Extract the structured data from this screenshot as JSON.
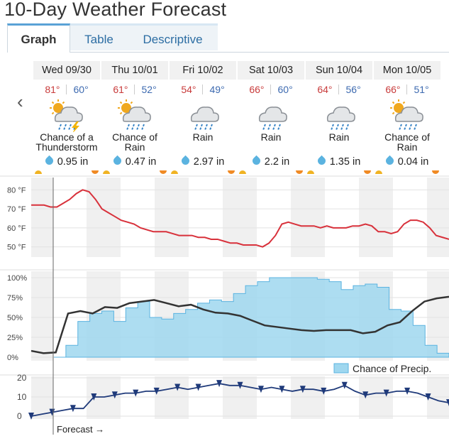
{
  "title": "10-Day Weather Forecast",
  "tabs": [
    {
      "label": "Graph",
      "active": true
    },
    {
      "label": "Table",
      "active": false
    },
    {
      "label": "Descriptive",
      "active": false
    }
  ],
  "days": [
    {
      "date": "Wed 09/30",
      "hi": "81°",
      "lo": "60°",
      "icon": "thunderstorm-icon",
      "cond": [
        "Chance of a",
        "Thunderstorm"
      ],
      "precip": "0.95 in"
    },
    {
      "date": "Thu 10/01",
      "hi": "61°",
      "lo": "52°",
      "icon": "partly-rain-icon",
      "cond": [
        "Chance of",
        "Rain"
      ],
      "precip": "0.47 in"
    },
    {
      "date": "Fri 10/02",
      "hi": "54°",
      "lo": "49°",
      "icon": "rain-icon",
      "cond": [
        "Rain"
      ],
      "precip": "2.97 in"
    },
    {
      "date": "Sat 10/03",
      "hi": "66°",
      "lo": "60°",
      "icon": "rain-icon",
      "cond": [
        "Rain"
      ],
      "precip": "2.2 in"
    },
    {
      "date": "Sun 10/04",
      "hi": "64°",
      "lo": "56°",
      "icon": "rain-icon",
      "cond": [
        "Rain"
      ],
      "precip": "1.35 in"
    },
    {
      "date": "Mon 10/05",
      "hi": "66°",
      "lo": "51°",
      "icon": "partly-rain-icon",
      "cond": [
        "Chance of",
        "Rain"
      ],
      "precip": "0.04 in"
    }
  ],
  "colors": {
    "high": "#c83b3b",
    "low": "#3d6ab0",
    "temp_line": "#d8313b",
    "precip_fill": "#9fd7ef",
    "precip_line": "#5bb3e0",
    "humidity_line": "#333333",
    "wind": "#1f3a7a"
  },
  "chart_data": [
    {
      "type": "line",
      "ylabel_ticks": [
        "80 °F",
        "70 °F",
        "60 °F",
        "50 °F"
      ],
      "ylim": [
        48,
        82
      ],
      "series": [
        {
          "values": [
            72,
            72,
            72,
            71,
            71,
            73,
            75,
            78,
            80,
            79,
            75,
            70,
            68,
            66,
            64,
            63,
            62,
            60,
            59,
            58,
            58,
            58,
            57,
            56,
            56,
            56,
            55,
            55,
            54,
            54,
            53,
            52,
            52,
            51,
            51,
            51,
            50,
            52,
            56,
            62,
            63,
            62,
            61,
            61,
            61,
            60,
            61,
            60,
            60,
            60,
            61,
            61,
            62,
            61,
            58,
            58,
            57,
            58,
            62,
            64,
            64,
            63,
            60,
            56,
            55,
            54
          ]
        }
      ]
    },
    {
      "type": "area",
      "ylabel_ticks": [
        "100%",
        "75%",
        "50%",
        "25%",
        "0%"
      ],
      "ylim": [
        0,
        100
      ],
      "legend": "Chance of Precip.",
      "series": [
        {
          "name": "Chance of Precip.",
          "values": [
            0,
            15,
            45,
            55,
            58,
            45,
            62,
            70,
            50,
            48,
            55,
            60,
            68,
            72,
            70,
            80,
            90,
            95,
            100,
            100,
            100,
            100,
            98,
            95,
            85,
            90,
            92,
            88,
            60,
            58,
            40,
            15,
            5,
            5
          ]
        },
        {
          "values": [
            8,
            5,
            6,
            55,
            58,
            55,
            63,
            62,
            68,
            70,
            72,
            68,
            64,
            66,
            60,
            56,
            55,
            52,
            46,
            40,
            38,
            36,
            34,
            33,
            34,
            34,
            34,
            30,
            32,
            40,
            44,
            58,
            70,
            74,
            76
          ]
        }
      ]
    },
    {
      "type": "line",
      "ylabel_ticks": [
        "20",
        "10",
        "0"
      ],
      "ylim": [
        0,
        20
      ],
      "series": [
        {
          "values": [
            0,
            1,
            2,
            3,
            4,
            4,
            10,
            10,
            11,
            12,
            12,
            13,
            13,
            14,
            15,
            14,
            15,
            16,
            17,
            16,
            16,
            15,
            14,
            15,
            14,
            13,
            14,
            14,
            13,
            14,
            16,
            13,
            11,
            12,
            12,
            13,
            13,
            12,
            10,
            8,
            7
          ]
        }
      ]
    }
  ],
  "forecast_label": "Forecast →"
}
